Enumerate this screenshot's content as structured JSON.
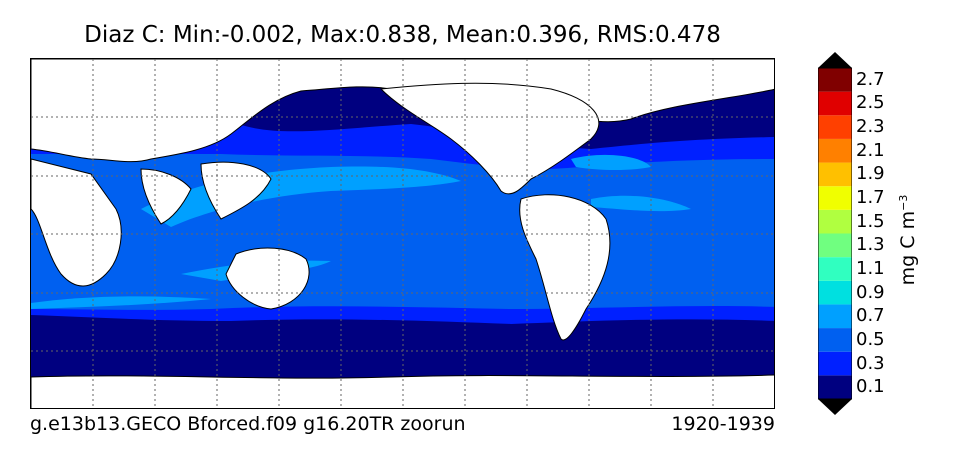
{
  "title": "Diaz C: Min:-0.002, Max:0.838, Mean:0.396, RMS:0.478",
  "footer": {
    "run_name": "g.e13b13.GECO Bforced.f09 g16.20TR zoorun",
    "period": "1920-1939"
  },
  "colorbar": {
    "label_main": "mg C m",
    "label_exp": "−3",
    "labels": [
      "0.1",
      "0.3",
      "0.5",
      "0.7",
      "0.9",
      "1.1",
      "1.3",
      "1.5",
      "1.7",
      "1.9",
      "2.1",
      "2.3",
      "2.5",
      "2.7"
    ],
    "colors": [
      "#000080",
      "#0020ff",
      "#0060f0",
      "#00a0ff",
      "#00e0e0",
      "#30ffc0",
      "#70ff80",
      "#b0ff40",
      "#f0ff00",
      "#ffc000",
      "#ff8000",
      "#ff4000",
      "#e00000",
      "#800000"
    ],
    "over_color": "#000000",
    "under_color": "#000000"
  },
  "map": {
    "projection": "cylindrical",
    "land_color": "#ffffff",
    "gridlines": true
  }
}
